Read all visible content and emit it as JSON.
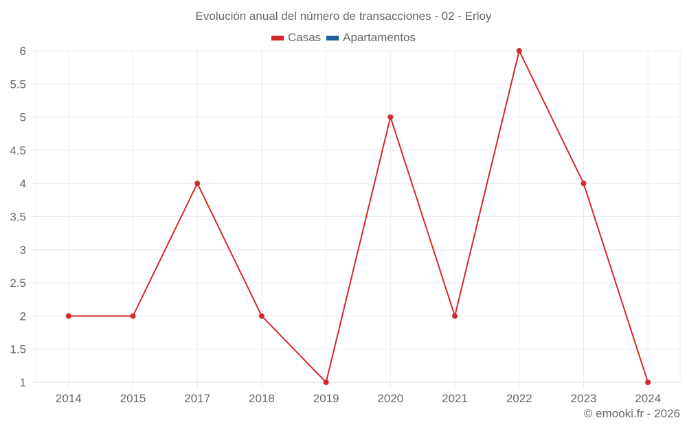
{
  "title": "Evolución anual del número de transacciones - 02 - Erloy",
  "legend": [
    {
      "label": "Casas",
      "color": "#d62728"
    },
    {
      "label": "Apartamentos",
      "color": "#1f5f99"
    }
  ],
  "credit": "© emooki.fr - 2026",
  "chart_data": {
    "type": "line",
    "title": "Evolución anual del número de transacciones - 02 - Erloy",
    "xlabel": "",
    "ylabel": "",
    "categories": [
      "2014",
      "2015",
      "2017",
      "2018",
      "2019",
      "2020",
      "2021",
      "2022",
      "2023",
      "2024"
    ],
    "series": [
      {
        "name": "Casas",
        "color": "#d62728",
        "values": [
          2,
          2,
          4,
          2,
          1,
          5,
          2,
          6,
          4,
          1
        ]
      },
      {
        "name": "Apartamentos",
        "color": "#1f5f99",
        "values": []
      }
    ],
    "ylim": [
      1,
      6
    ],
    "yticks": [
      "1",
      "1.5",
      "2",
      "2.5",
      "3",
      "3.5",
      "4",
      "4.5",
      "5",
      "5.5",
      "6"
    ],
    "grid": true,
    "legend_position": "top"
  }
}
